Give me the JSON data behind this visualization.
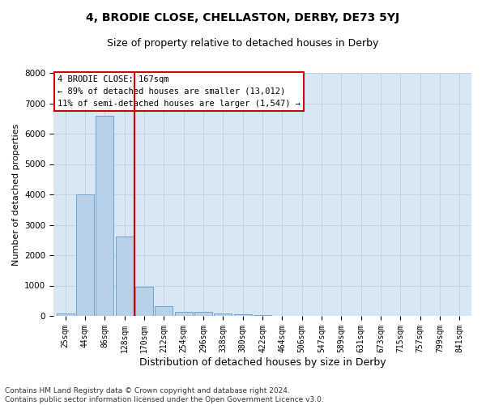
{
  "title": "4, BRODIE CLOSE, CHELLASTON, DERBY, DE73 5YJ",
  "subtitle": "Size of property relative to detached houses in Derby",
  "xlabel": "Distribution of detached houses by size in Derby",
  "ylabel": "Number of detached properties",
  "bin_labels": [
    "25sqm",
    "44sqm",
    "86sqm",
    "128sqm",
    "170sqm",
    "212sqm",
    "254sqm",
    "296sqm",
    "338sqm",
    "380sqm",
    "422sqm",
    "464sqm",
    "506sqm",
    "547sqm",
    "589sqm",
    "631sqm",
    "673sqm",
    "715sqm",
    "757sqm",
    "799sqm",
    "841sqm"
  ],
  "bar_heights": [
    80,
    4000,
    6600,
    2620,
    950,
    330,
    130,
    125,
    80,
    60,
    40,
    0,
    0,
    0,
    0,
    0,
    0,
    0,
    0,
    0,
    0
  ],
  "bar_color": "#b8d0e8",
  "bar_edge_color": "#6699cc",
  "vertical_line_color": "#cc0000",
  "annotation_box_text": "4 BRODIE CLOSE: 167sqm\n← 89% of detached houses are smaller (13,012)\n11% of semi-detached houses are larger (1,547) →",
  "ylim": [
    0,
    8000
  ],
  "yticks": [
    0,
    1000,
    2000,
    3000,
    4000,
    5000,
    6000,
    7000,
    8000
  ],
  "grid_color": "#c0d4e4",
  "bg_color": "#d8e8f2",
  "footer": "Contains HM Land Registry data © Crown copyright and database right 2024.\nContains public sector information licensed under the Open Government Licence v3.0.",
  "title_fontsize": 10,
  "subtitle_fontsize": 9,
  "xlabel_fontsize": 9,
  "ylabel_fontsize": 8,
  "tick_fontsize": 7,
  "annotation_fontsize": 7.5,
  "footer_fontsize": 6.5
}
